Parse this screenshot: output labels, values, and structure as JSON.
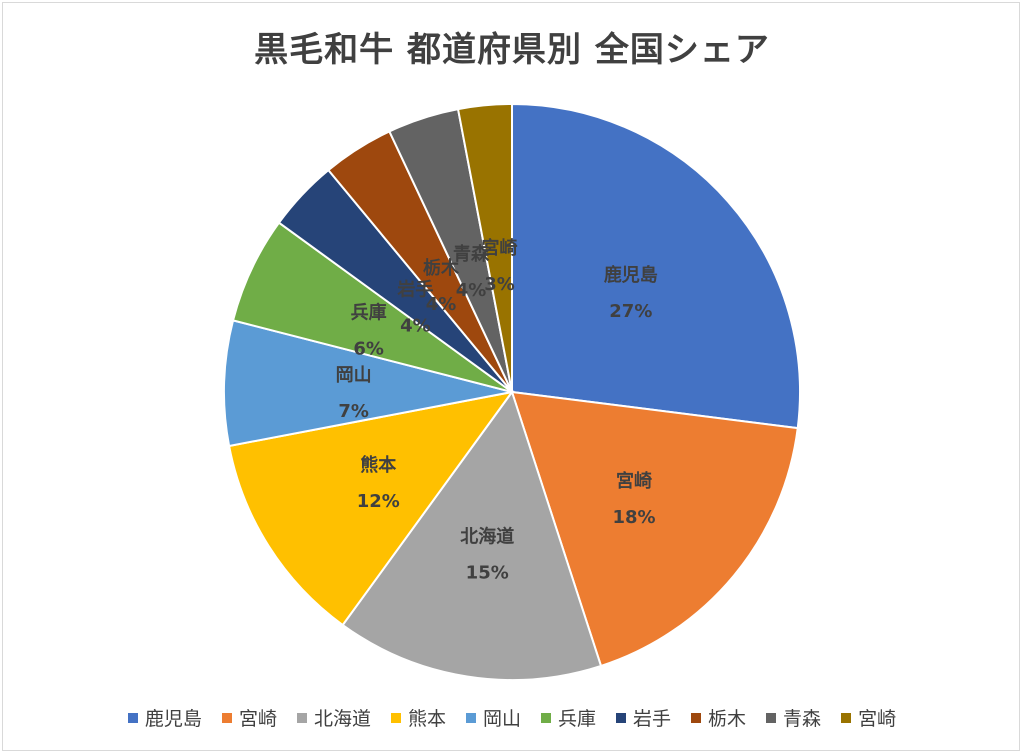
{
  "chart_data": {
    "type": "pie",
    "title": "黒毛和牛 都道府県別 全国シェア",
    "categories": [
      "鹿児島",
      "宮崎",
      "北海道",
      "熊本",
      "岡山",
      "兵庫",
      "岩手",
      "栃木",
      "青森",
      "宮崎"
    ],
    "values": [
      27,
      18,
      15,
      12,
      7,
      6,
      4,
      4,
      4,
      3
    ],
    "labels": [
      "27%",
      "18%",
      "15%",
      "12%",
      "7%",
      "6%",
      "4%",
      "4%",
      "4%",
      "3%"
    ],
    "colors": [
      "#4472C4",
      "#ED7D31",
      "#A5A5A5",
      "#FFC000",
      "#5B9BD5",
      "#70AD47",
      "#264478",
      "#9E480E",
      "#636363",
      "#997300"
    ],
    "legend_position": "bottom"
  }
}
